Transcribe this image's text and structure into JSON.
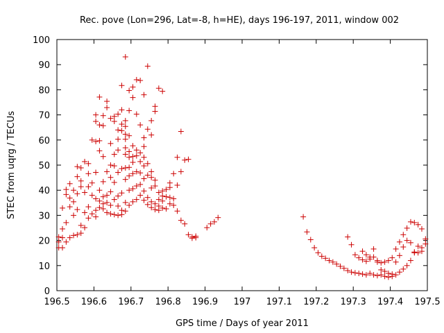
{
  "chart_data": {
    "type": "scatter",
    "title": "Rec. pove (Lon=296, Lat=-8, h=HE), days 196-197, 2011, window 002",
    "xlabel": "GPS time / Days of year 2011",
    "ylabel": "STEC from uqrg / TECUs",
    "xlim": [
      196.5,
      197.5
    ],
    "ylim": [
      0,
      100
    ],
    "x_ticks": [
      "196.5",
      "196.6",
      "196.7",
      "196.8",
      "196.9",
      "197",
      "197.1",
      "197.2",
      "197.3",
      "197.4",
      "197.5"
    ],
    "y_ticks": [
      "0",
      "10",
      "20",
      "30",
      "40",
      "50",
      "60",
      "70",
      "80",
      "90",
      "100"
    ],
    "grid": false,
    "legend": "none",
    "marker": "plus",
    "color": "#cc0000",
    "series": [
      {
        "points": [
          [
            196.505,
            17.1
          ],
          [
            196.505,
            19.4
          ],
          [
            196.505,
            21.4
          ],
          [
            196.515,
            17.1
          ],
          [
            196.515,
            21.1
          ],
          [
            196.515,
            24.6
          ],
          [
            196.515,
            32.9
          ],
          [
            196.525,
            19.4
          ],
          [
            196.525,
            27.1
          ],
          [
            196.525,
            38.3
          ],
          [
            196.525,
            40.3
          ],
          [
            196.535,
            21.1
          ],
          [
            196.535,
            33.4
          ],
          [
            196.535,
            36.9
          ],
          [
            196.535,
            42.6
          ],
          [
            196.545,
            22.0
          ],
          [
            196.545,
            30.0
          ],
          [
            196.545,
            35.4
          ],
          [
            196.545,
            40.0
          ],
          [
            196.555,
            22.3
          ],
          [
            196.555,
            32.3
          ],
          [
            196.555,
            38.6
          ],
          [
            196.555,
            45.4
          ],
          [
            196.555,
            49.4
          ],
          [
            196.565,
            22.9
          ],
          [
            196.565,
            26.0
          ],
          [
            196.565,
            41.4
          ],
          [
            196.565,
            43.7
          ],
          [
            196.565,
            48.9
          ],
          [
            196.575,
            25.1
          ],
          [
            196.575,
            31.1
          ],
          [
            196.575,
            39.1
          ],
          [
            196.575,
            51.4
          ],
          [
            196.585,
            28.9
          ],
          [
            196.585,
            33.4
          ],
          [
            196.585,
            41.4
          ],
          [
            196.585,
            46.6
          ],
          [
            196.585,
            50.6
          ],
          [
            196.595,
            30.6
          ],
          [
            196.595,
            38.0
          ],
          [
            196.595,
            42.9
          ],
          [
            196.595,
            60.0
          ],
          [
            196.605,
            29.4
          ],
          [
            196.605,
            32.0
          ],
          [
            196.605,
            36.6
          ],
          [
            196.605,
            47.1
          ],
          [
            196.605,
            59.4
          ],
          [
            196.605,
            67.4
          ],
          [
            196.605,
            70.0
          ],
          [
            196.615,
            33.1
          ],
          [
            196.615,
            35.7
          ],
          [
            196.615,
            40.0
          ],
          [
            196.615,
            55.7
          ],
          [
            196.615,
            59.7
          ],
          [
            196.615,
            66.0
          ],
          [
            196.615,
            77.1
          ],
          [
            196.625,
            32.6
          ],
          [
            196.625,
            34.6
          ],
          [
            196.625,
            37.4
          ],
          [
            196.625,
            43.4
          ],
          [
            196.625,
            53.4
          ],
          [
            196.625,
            65.7
          ],
          [
            196.625,
            69.7
          ],
          [
            196.635,
            31.1
          ],
          [
            196.635,
            35.1
          ],
          [
            196.635,
            38.0
          ],
          [
            196.635,
            47.4
          ],
          [
            196.635,
            72.9
          ],
          [
            196.635,
            75.4
          ],
          [
            196.645,
            30.6
          ],
          [
            196.645,
            34.0
          ],
          [
            196.645,
            39.4
          ],
          [
            196.645,
            45.1
          ],
          [
            196.645,
            50.0
          ],
          [
            196.645,
            58.6
          ],
          [
            196.645,
            68.6
          ],
          [
            196.655,
            30.3
          ],
          [
            196.655,
            36.3
          ],
          [
            196.655,
            43.1
          ],
          [
            196.655,
            49.7
          ],
          [
            196.655,
            54.3
          ],
          [
            196.655,
            67.4
          ],
          [
            196.655,
            69.4
          ],
          [
            196.665,
            30.0
          ],
          [
            196.665,
            33.7
          ],
          [
            196.665,
            37.7
          ],
          [
            196.665,
            47.1
          ],
          [
            196.665,
            56.0
          ],
          [
            196.665,
            60.3
          ],
          [
            196.665,
            64.0
          ],
          [
            196.665,
            70.3
          ],
          [
            196.675,
            30.3
          ],
          [
            196.675,
            32.0
          ],
          [
            196.675,
            38.9
          ],
          [
            196.675,
            48.6
          ],
          [
            196.675,
            63.7
          ],
          [
            196.675,
            66.3
          ],
          [
            196.675,
            72.0
          ],
          [
            196.675,
            81.7
          ],
          [
            196.685,
            31.7
          ],
          [
            196.685,
            35.1
          ],
          [
            196.685,
            44.3
          ],
          [
            196.685,
            48.9
          ],
          [
            196.685,
            54.3
          ],
          [
            196.685,
            56.9
          ],
          [
            196.685,
            60.3
          ],
          [
            196.685,
            62.3
          ],
          [
            196.685,
            65.4
          ],
          [
            196.685,
            67.7
          ],
          [
            196.685,
            93.1
          ],
          [
            196.695,
            34.0
          ],
          [
            196.695,
            40.0
          ],
          [
            196.695,
            45.7
          ],
          [
            196.695,
            49.1
          ],
          [
            196.695,
            53.1
          ],
          [
            196.695,
            55.4
          ],
          [
            196.695,
            61.7
          ],
          [
            196.695,
            71.7
          ],
          [
            196.695,
            79.7
          ],
          [
            196.705,
            35.4
          ],
          [
            196.705,
            40.6
          ],
          [
            196.705,
            46.6
          ],
          [
            196.705,
            51.1
          ],
          [
            196.705,
            53.4
          ],
          [
            196.705,
            57.7
          ],
          [
            196.705,
            76.9
          ],
          [
            196.705,
            81.1
          ],
          [
            196.715,
            36.3
          ],
          [
            196.715,
            41.7
          ],
          [
            196.715,
            47.4
          ],
          [
            196.715,
            53.7
          ],
          [
            196.715,
            56.0
          ],
          [
            196.715,
            70.3
          ],
          [
            196.715,
            84.0
          ],
          [
            196.725,
            38.0
          ],
          [
            196.725,
            42.3
          ],
          [
            196.725,
            46.9
          ],
          [
            196.725,
            51.4
          ],
          [
            196.725,
            54.9
          ],
          [
            196.725,
            66.0
          ],
          [
            196.725,
            83.7
          ],
          [
            196.735,
            36.0
          ],
          [
            196.735,
            39.7
          ],
          [
            196.735,
            44.6
          ],
          [
            196.735,
            49.7
          ],
          [
            196.735,
            53.1
          ],
          [
            196.735,
            57.4
          ],
          [
            196.735,
            60.9
          ],
          [
            196.735,
            78.0
          ],
          [
            196.745,
            34.3
          ],
          [
            196.745,
            37.1
          ],
          [
            196.745,
            46.0
          ],
          [
            196.745,
            50.6
          ],
          [
            196.745,
            64.3
          ],
          [
            196.745,
            89.4
          ],
          [
            196.755,
            33.1
          ],
          [
            196.755,
            35.4
          ],
          [
            196.755,
            40.9
          ],
          [
            196.755,
            45.1
          ],
          [
            196.755,
            47.4
          ],
          [
            196.755,
            62.0
          ],
          [
            196.755,
            67.7
          ],
          [
            196.765,
            32.3
          ],
          [
            196.765,
            34.6
          ],
          [
            196.765,
            41.7
          ],
          [
            196.765,
            44.0
          ],
          [
            196.765,
            71.4
          ],
          [
            196.765,
            73.4
          ],
          [
            196.775,
            32.0
          ],
          [
            196.775,
            33.7
          ],
          [
            196.775,
            36.3
          ],
          [
            196.775,
            39.1
          ],
          [
            196.775,
            80.6
          ],
          [
            196.785,
            32.9
          ],
          [
            196.785,
            35.7
          ],
          [
            196.785,
            37.7
          ],
          [
            196.785,
            39.7
          ],
          [
            196.785,
            79.4
          ],
          [
            196.795,
            32.6
          ],
          [
            196.795,
            37.4
          ],
          [
            196.795,
            40.3
          ],
          [
            196.805,
            34.6
          ],
          [
            196.805,
            37.1
          ],
          [
            196.805,
            41.1
          ],
          [
            196.805,
            42.9
          ],
          [
            196.815,
            34.0
          ],
          [
            196.815,
            36.6
          ],
          [
            196.815,
            46.6
          ],
          [
            196.825,
            31.7
          ],
          [
            196.825,
            42.0
          ],
          [
            196.825,
            53.1
          ],
          [
            196.835,
            28.0
          ],
          [
            196.835,
            47.4
          ],
          [
            196.835,
            63.4
          ],
          [
            196.845,
            26.6
          ],
          [
            196.845,
            52.0
          ],
          [
            196.855,
            22.3
          ],
          [
            196.855,
            52.3
          ],
          [
            196.865,
            20.9
          ],
          [
            196.865,
            21.4
          ],
          [
            196.875,
            21.1
          ],
          [
            196.875,
            21.7
          ],
          [
            196.905,
            25.1
          ],
          [
            196.915,
            26.6
          ],
          [
            196.925,
            27.4
          ],
          [
            196.935,
            29.1
          ],
          [
            197.165,
            29.4
          ],
          [
            197.175,
            23.4
          ],
          [
            197.185,
            20.3
          ],
          [
            197.195,
            17.1
          ],
          [
            197.205,
            15.1
          ],
          [
            197.215,
            13.7
          ],
          [
            197.225,
            12.9
          ],
          [
            197.235,
            12.0
          ],
          [
            197.245,
            11.4
          ],
          [
            197.255,
            10.6
          ],
          [
            197.265,
            9.7
          ],
          [
            197.275,
            8.9
          ],
          [
            197.285,
            8.0
          ],
          [
            197.295,
            7.4
          ],
          [
            197.305,
            7.1
          ],
          [
            197.315,
            6.9
          ],
          [
            197.325,
            6.6
          ],
          [
            197.335,
            6.3
          ],
          [
            197.345,
            6.9
          ],
          [
            197.355,
            6.3
          ],
          [
            197.365,
            6.0
          ],
          [
            197.375,
            6.3
          ],
          [
            197.385,
            5.7
          ],
          [
            197.395,
            5.4
          ],
          [
            197.405,
            5.7
          ],
          [
            197.415,
            6.3
          ],
          [
            197.425,
            7.4
          ],
          [
            197.435,
            8.6
          ],
          [
            197.445,
            10.0
          ],
          [
            197.455,
            12.0
          ],
          [
            197.465,
            15.1
          ],
          [
            197.475,
            17.7
          ],
          [
            197.485,
            17.1
          ],
          [
            197.495,
            18.6
          ],
          [
            197.285,
            21.4
          ],
          [
            197.295,
            18.3
          ],
          [
            197.305,
            14.3
          ],
          [
            197.315,
            13.1
          ],
          [
            197.325,
            12.3
          ],
          [
            197.335,
            11.7
          ],
          [
            197.345,
            12.6
          ],
          [
            197.355,
            13.4
          ],
          [
            197.365,
            11.4
          ],
          [
            197.375,
            11.1
          ],
          [
            197.385,
            11.4
          ],
          [
            197.395,
            12.0
          ],
          [
            197.405,
            13.1
          ],
          [
            197.415,
            16.6
          ],
          [
            197.425,
            19.4
          ],
          [
            197.435,
            22.3
          ],
          [
            197.445,
            24.9
          ],
          [
            197.455,
            27.4
          ],
          [
            197.465,
            27.1
          ],
          [
            197.475,
            26.3
          ],
          [
            197.485,
            24.6
          ],
          [
            197.495,
            20.6
          ],
          [
            197.325,
            15.7
          ],
          [
            197.335,
            14.3
          ],
          [
            197.345,
            13.4
          ],
          [
            197.355,
            16.6
          ],
          [
            197.365,
            12.0
          ],
          [
            197.375,
            8.3
          ],
          [
            197.385,
            7.7
          ],
          [
            197.395,
            6.9
          ],
          [
            197.405,
            6.6
          ],
          [
            197.415,
            11.4
          ],
          [
            197.425,
            14.0
          ],
          [
            197.435,
            17.4
          ],
          [
            197.445,
            20.0
          ],
          [
            197.455,
            19.1
          ],
          [
            197.465,
            15.4
          ],
          [
            197.475,
            15.1
          ],
          [
            197.485,
            15.7
          ]
        ]
      }
    ]
  }
}
